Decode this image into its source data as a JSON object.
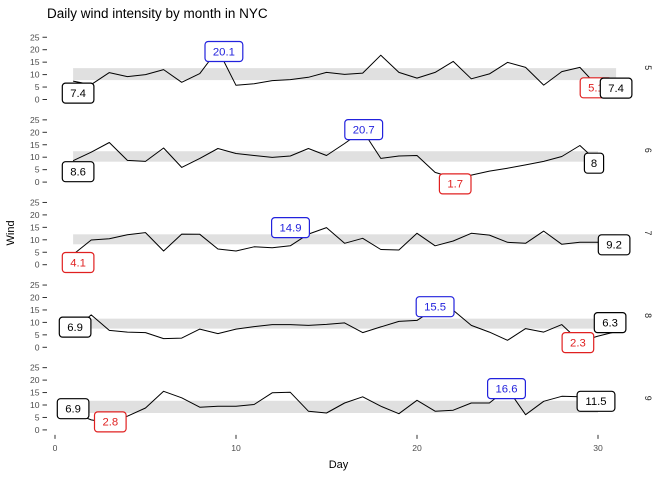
{
  "title": "Daily wind intensity by month in NYC",
  "axes": {
    "x_label": "Day",
    "y_label": "Wind",
    "x_ticks": [
      0,
      10,
      20,
      30
    ],
    "y_ticks": [
      0,
      5,
      10,
      15,
      20,
      25
    ]
  },
  "colors": {
    "line": "#000000",
    "band": "#E0E0E0",
    "black_label": "#000000",
    "max_label": "#2222DD",
    "min_label": "#E02020",
    "label_fill": "#FFFFFF",
    "axis_text": "#4D4D4D",
    "tick_mark": "#333333",
    "strip_text": "#222222",
    "title_text": "#000000"
  },
  "chart_data": {
    "type": "line",
    "title": "Daily wind intensity by month in NYC",
    "xlabel": "Day",
    "ylabel": "Wind",
    "x_range": [
      0,
      31
    ],
    "y_ticks_per_facet": [
      0,
      5,
      10,
      15,
      20,
      25
    ],
    "grid": "off",
    "facets": [
      {
        "strip": "5",
        "band": [
          7.8,
          12.6
        ],
        "values": [
          7.4,
          6.0,
          10.8,
          9.2,
          10.0,
          12.0,
          6.9,
          10.4,
          20.1,
          5.7,
          6.3,
          7.6,
          8.0,
          8.9,
          10.9,
          10.1,
          10.6,
          17.8,
          10.9,
          8.6,
          10.9,
          15.3,
          8.3,
          10.3,
          14.9,
          12.9,
          5.8,
          11.2,
          12.9,
          5.1,
          7.4
        ],
        "labels": [
          {
            "kind": "min",
            "day": 30,
            "value": 5.1,
            "text": "5.1",
            "nx": -2,
            "ny": 1
          },
          {
            "kind": "max",
            "day": 9,
            "value": 20.1,
            "text": "20.1",
            "nx": 6,
            "ny": 2
          },
          {
            "kind": "first",
            "day": 1,
            "value": 7.4,
            "text": "7.4",
            "nx": 5,
            "ny": 12
          },
          {
            "kind": "last",
            "day": 31,
            "value": 7.4,
            "text": "7.4",
            "nx": 0,
            "ny": 7
          }
        ]
      },
      {
        "strip": "6",
        "band": [
          8.2,
          12.4
        ],
        "values": [
          8.6,
          12.0,
          15.9,
          8.7,
          8.3,
          13.7,
          5.9,
          9.5,
          13.5,
          11.5,
          10.7,
          9.9,
          10.5,
          13.5,
          10.7,
          15.5,
          20.7,
          9.5,
          10.5,
          10.7,
          3.9,
          1.7,
          2.8,
          4.4,
          5.6,
          6.9,
          8.3,
          10.3,
          14.7,
          8.0
        ],
        "labels": [
          {
            "kind": "min",
            "day": 22,
            "value": 1.7,
            "text": "1.7",
            "nx": 2,
            "ny": 6
          },
          {
            "kind": "max",
            "day": 17,
            "value": 20.7,
            "text": "20.7",
            "nx": 1,
            "ny": -1
          },
          {
            "kind": "first",
            "day": 1,
            "value": 8.6,
            "text": "8.6",
            "nx": 5,
            "ny": 11
          },
          {
            "kind": "last",
            "day": 30,
            "value": 8.0,
            "text": "8",
            "nx": -4,
            "ny": 1
          }
        ]
      },
      {
        "strip": "7",
        "band": [
          8.2,
          12.2
        ],
        "values": [
          4.1,
          9.9,
          10.4,
          12.0,
          12.9,
          5.5,
          12.3,
          12.2,
          6.3,
          5.5,
          7.2,
          6.8,
          7.6,
          12.3,
          14.9,
          8.6,
          10.6,
          6.1,
          5.9,
          12.6,
          7.6,
          9.5,
          12.6,
          11.9,
          9.0,
          8.6,
          13.5,
          8.2,
          9.0,
          9.0,
          9.2
        ],
        "labels": [
          {
            "kind": "min",
            "day": 1,
            "value": 4.1,
            "text": "4.1",
            "nx": 5,
            "ny": 8
          },
          {
            "kind": "max",
            "day": 15,
            "value": 14.9,
            "text": "14.9",
            "nx": -36,
            "ny": 0
          },
          {
            "kind": "last",
            "day": 31,
            "value": 9.2,
            "text": "9.2",
            "nx": -2,
            "ny": 3
          }
        ]
      },
      {
        "strip": "8",
        "band": [
          7.5,
          11.5
        ],
        "values": [
          6.9,
          13.0,
          6.8,
          6.1,
          5.9,
          3.5,
          3.7,
          7.3,
          5.5,
          7.3,
          8.3,
          9.1,
          9.1,
          8.8,
          9.2,
          9.8,
          5.9,
          8.2,
          10.4,
          10.8,
          15.5,
          14.9,
          8.8,
          6.1,
          2.8,
          7.5,
          6.1,
          9.1,
          2.3,
          4.5,
          6.3
        ],
        "labels": [
          {
            "kind": "min",
            "day": 29,
            "value": 2.3,
            "text": "2.3",
            "nx": -2,
            "ny": 1
          },
          {
            "kind": "max",
            "day": 21,
            "value": 15.5,
            "text": "15.5",
            "nx": 0,
            "ny": -2
          },
          {
            "kind": "first",
            "day": 1,
            "value": 6.9,
            "text": "6.9",
            "nx": 2,
            "ny": -3
          },
          {
            "kind": "last",
            "day": 31,
            "value": 6.3,
            "text": "6.3",
            "nx": -6,
            "ny": -9
          }
        ]
      },
      {
        "strip": "9",
        "band": [
          6.8,
          11.7
        ],
        "values": [
          6.9,
          4.0,
          2.8,
          5.5,
          8.8,
          15.5,
          12.9,
          9.1,
          9.5,
          9.5,
          10.2,
          14.9,
          15.1,
          7.5,
          6.8,
          10.8,
          13.3,
          9.5,
          6.5,
          11.9,
          7.5,
          7.9,
          10.8,
          10.8,
          16.6,
          6.1,
          11.5,
          13.5,
          13.3,
          11.5
        ],
        "labels": [
          {
            "kind": "min",
            "day": 3,
            "value": 2.8,
            "text": "2.8",
            "nx": 1,
            "ny": -1
          },
          {
            "kind": "max",
            "day": 25,
            "value": 16.6,
            "text": "16.6",
            "nx": -1,
            "ny": 0
          },
          {
            "kind": "first",
            "day": 1,
            "value": 6.9,
            "text": "6.9",
            "nx": 0,
            "ny": -4
          },
          {
            "kind": "last",
            "day": 30,
            "value": 11.5,
            "text": "11.5",
            "nx": -2,
            "ny": 0
          }
        ]
      }
    ]
  }
}
